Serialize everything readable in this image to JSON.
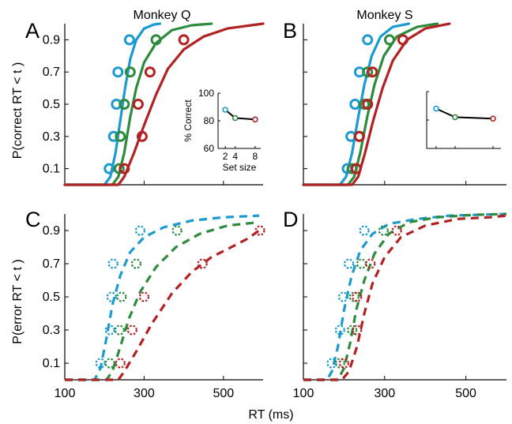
{
  "figure": {
    "panel_letters": [
      "A",
      "B",
      "C",
      "D"
    ],
    "titles": {
      "monkey_q": "Monkey Q",
      "monkey_s": "Monkey S"
    },
    "ylabel_top": "P(correct RT < t )",
    "ylabel_bottom": "P(error RT < t )",
    "xlabel": "RT (ms)",
    "x_ticks": [
      "100",
      "300",
      "500"
    ],
    "y_ticks": [
      "0.1",
      "0.3",
      "0.5",
      "0.7",
      "0.9"
    ],
    "inset": {
      "ylabel": "% Correct",
      "xlabel": "Set size",
      "x_ticks": [
        "2",
        "4",
        "8"
      ],
      "y_ticks": [
        "60",
        "80",
        "100"
      ]
    }
  },
  "colors": {
    "set2": "#1a9ad1",
    "set4": "#2e8b3e",
    "set8": "#b22222",
    "axis": "#000000"
  },
  "chart_data": [
    {
      "panel": "A",
      "type": "line",
      "title": "Monkey Q",
      "xlabel": "",
      "ylabel": "P(correct RT < t )",
      "xlim": [
        100,
        600
      ],
      "ylim": [
        0,
        1
      ],
      "series": [
        {
          "name": "2",
          "curve": [
            [
              200,
              0
            ],
            [
              215,
              0.05
            ],
            [
              228,
              0.2
            ],
            [
              240,
              0.4
            ],
            [
              252,
              0.6
            ],
            [
              265,
              0.78
            ],
            [
              280,
              0.9
            ],
            [
              300,
              0.97
            ],
            [
              325,
              0.995
            ],
            [
              340,
              1.0
            ]
          ],
          "points": [
            [
              212,
              0.1
            ],
            [
              223,
              0.3
            ],
            [
              230,
              0.5
            ],
            [
              234,
              0.7
            ],
            [
              263,
              0.9
            ]
          ]
        },
        {
          "name": "4",
          "curve": [
            [
              220,
              0
            ],
            [
              235,
              0.05
            ],
            [
              250,
              0.2
            ],
            [
              265,
              0.42
            ],
            [
              280,
              0.6
            ],
            [
              300,
              0.76
            ],
            [
              330,
              0.88
            ],
            [
              370,
              0.96
            ],
            [
              420,
              0.99
            ],
            [
              470,
              1.0
            ]
          ],
          "points": [
            [
              237,
              0.1
            ],
            [
              240,
              0.3
            ],
            [
              250,
              0.5
            ],
            [
              265,
              0.7
            ],
            [
              330,
              0.9
            ]
          ]
        },
        {
          "name": "8",
          "curve": [
            [
              235,
              0
            ],
            [
              250,
              0.05
            ],
            [
              275,
              0.2
            ],
            [
              300,
              0.37
            ],
            [
              330,
              0.56
            ],
            [
              360,
              0.72
            ],
            [
              400,
              0.84
            ],
            [
              450,
              0.92
            ],
            [
              510,
              0.97
            ],
            [
              570,
              0.99
            ],
            [
              600,
              1.0
            ]
          ],
          "points": [
            [
              250,
              0.1
            ],
            [
              295,
              0.3
            ],
            [
              285,
              0.5
            ],
            [
              315,
              0.7
            ],
            [
              400,
              0.9
            ]
          ]
        }
      ],
      "inset": {
        "type": "line",
        "xlabel": "Set size",
        "ylabel": "% Correct",
        "x": [
          2,
          4,
          8
        ],
        "y": [
          88,
          82,
          81
        ],
        "xlim": [
          1.5,
          8.5
        ],
        "ylim": [
          60,
          100
        ]
      }
    },
    {
      "panel": "B",
      "type": "line",
      "title": "Monkey S",
      "xlabel": "",
      "ylabel": "",
      "xlim": [
        100,
        600
      ],
      "ylim": [
        0,
        1
      ],
      "series": [
        {
          "name": "2",
          "curve": [
            [
              190,
              0
            ],
            [
              205,
              0.05
            ],
            [
              220,
              0.2
            ],
            [
              235,
              0.42
            ],
            [
              250,
              0.62
            ],
            [
              268,
              0.8
            ],
            [
              290,
              0.92
            ],
            [
              320,
              0.98
            ],
            [
              360,
              1.0
            ]
          ],
          "points": [
            [
              208,
              0.1
            ],
            [
              217,
              0.3
            ],
            [
              227,
              0.5
            ],
            [
              238,
              0.7
            ],
            [
              258,
              0.9
            ]
          ]
        },
        {
          "name": "4",
          "curve": [
            [
              210,
              0
            ],
            [
              225,
              0.05
            ],
            [
              240,
              0.2
            ],
            [
              257,
              0.42
            ],
            [
              275,
              0.62
            ],
            [
              298,
              0.8
            ],
            [
              330,
              0.92
            ],
            [
              380,
              0.98
            ],
            [
              430,
              1.0
            ]
          ],
          "points": [
            [
              220,
              0.1
            ],
            [
              237,
              0.3
            ],
            [
              250,
              0.5
            ],
            [
              258,
              0.7
            ],
            [
              312,
              0.9
            ]
          ]
        },
        {
          "name": "8",
          "curve": [
            [
              220,
              0
            ],
            [
              235,
              0.05
            ],
            [
              252,
              0.2
            ],
            [
              272,
              0.4
            ],
            [
              295,
              0.6
            ],
            [
              320,
              0.77
            ],
            [
              355,
              0.9
            ],
            [
              400,
              0.97
            ],
            [
              460,
              1.0
            ]
          ],
          "points": [
            [
              230,
              0.1
            ],
            [
              238,
              0.3
            ],
            [
              258,
              0.5
            ],
            [
              270,
              0.7
            ],
            [
              345,
              0.9
            ]
          ]
        }
      ],
      "inset": {
        "type": "line",
        "x": [
          2,
          4,
          8
        ],
        "y": [
          88,
          82,
          81
        ],
        "xlim": [
          1.5,
          8.5
        ],
        "ylim": [
          60,
          100
        ],
        "tick_labels_shown": false
      }
    },
    {
      "panel": "C",
      "type": "line",
      "line_style": "dashed",
      "title": "",
      "xlabel": "",
      "ylabel": "P(error RT < t )",
      "xlim": [
        100,
        600
      ],
      "ylim": [
        0,
        1
      ],
      "series": [
        {
          "name": "2",
          "curve": [
            [
              175,
              0
            ],
            [
              190,
              0.07
            ],
            [
              205,
              0.25
            ],
            [
              220,
              0.45
            ],
            [
              240,
              0.63
            ],
            [
              265,
              0.77
            ],
            [
              300,
              0.86
            ],
            [
              350,
              0.92
            ],
            [
              420,
              0.96
            ],
            [
              500,
              0.98
            ],
            [
              590,
              0.99
            ]
          ],
          "points": [
            [
              190,
              0.1
            ],
            [
              214,
              0.3
            ],
            [
              218,
              0.5
            ],
            [
              222,
              0.7
            ],
            [
              290,
              0.9
            ]
          ]
        },
        {
          "name": "4",
          "curve": [
            [
              205,
              0
            ],
            [
              220,
              0.05
            ],
            [
              240,
              0.2
            ],
            [
              262,
              0.37
            ],
            [
              290,
              0.53
            ],
            [
              330,
              0.68
            ],
            [
              380,
              0.8
            ],
            [
              440,
              0.88
            ],
            [
              510,
              0.93
            ],
            [
              590,
              0.95
            ]
          ],
          "points": [
            [
              214,
              0.1
            ],
            [
              238,
              0.3
            ],
            [
              243,
              0.5
            ],
            [
              280,
              0.7
            ],
            [
              383,
              0.9
            ]
          ]
        },
        {
          "name": "8",
          "curve": [
            [
              235,
              0
            ],
            [
              250,
              0.05
            ],
            [
              280,
              0.17
            ],
            [
              320,
              0.34
            ],
            [
              370,
              0.52
            ],
            [
              420,
              0.65
            ],
            [
              470,
              0.74
            ],
            [
              520,
              0.8
            ],
            [
              560,
              0.85
            ],
            [
              590,
              0.9
            ]
          ],
          "points": [
            [
              240,
              0.1
            ],
            [
              270,
              0.3
            ],
            [
              300,
              0.5
            ],
            [
              447,
              0.7
            ],
            [
              592,
              0.9
            ]
          ]
        }
      ]
    },
    {
      "panel": "D",
      "type": "line",
      "line_style": "dashed",
      "title": "",
      "xlabel": "",
      "ylabel": "",
      "xlim": [
        100,
        600
      ],
      "ylim": [
        0,
        1
      ],
      "series": [
        {
          "name": "2",
          "curve": [
            [
              158,
              0
            ],
            [
              170,
              0.05
            ],
            [
              185,
              0.2
            ],
            [
              200,
              0.42
            ],
            [
              218,
              0.62
            ],
            [
              240,
              0.78
            ],
            [
              270,
              0.88
            ],
            [
              310,
              0.94
            ],
            [
              380,
              0.97
            ],
            [
              460,
              0.99
            ],
            [
              600,
              1.0
            ]
          ],
          "points": [
            [
              170,
              0.1
            ],
            [
              190,
              0.3
            ],
            [
              198,
              0.5
            ],
            [
              212,
              0.7
            ],
            [
              250,
              0.9
            ]
          ]
        },
        {
          "name": "4",
          "curve": [
            [
              185,
              0
            ],
            [
              200,
              0.07
            ],
            [
              215,
              0.22
            ],
            [
              230,
              0.42
            ],
            [
              250,
              0.6
            ],
            [
              275,
              0.76
            ],
            [
              310,
              0.88
            ],
            [
              360,
              0.95
            ],
            [
              430,
              0.98
            ],
            [
              520,
              0.995
            ],
            [
              600,
              1.0
            ]
          ],
          "points": [
            [
              190,
              0.1
            ],
            [
              220,
              0.3
            ],
            [
              225,
              0.5
            ],
            [
              243,
              0.7
            ],
            [
              297,
              0.9
            ]
          ]
        },
        {
          "name": "8",
          "curve": [
            [
              195,
              0
            ],
            [
              212,
              0.05
            ],
            [
              232,
              0.2
            ],
            [
              250,
              0.4
            ],
            [
              270,
              0.58
            ],
            [
              300,
              0.74
            ],
            [
              340,
              0.86
            ],
            [
              400,
              0.93
            ],
            [
              480,
              0.97
            ],
            [
              560,
              0.98
            ],
            [
              600,
              0.99
            ]
          ],
          "points": [
            [
              200,
              0.1
            ],
            [
              232,
              0.3
            ],
            [
              232,
              0.5
            ],
            [
              265,
              0.7
            ],
            [
              330,
              0.9
            ]
          ]
        }
      ]
    }
  ]
}
